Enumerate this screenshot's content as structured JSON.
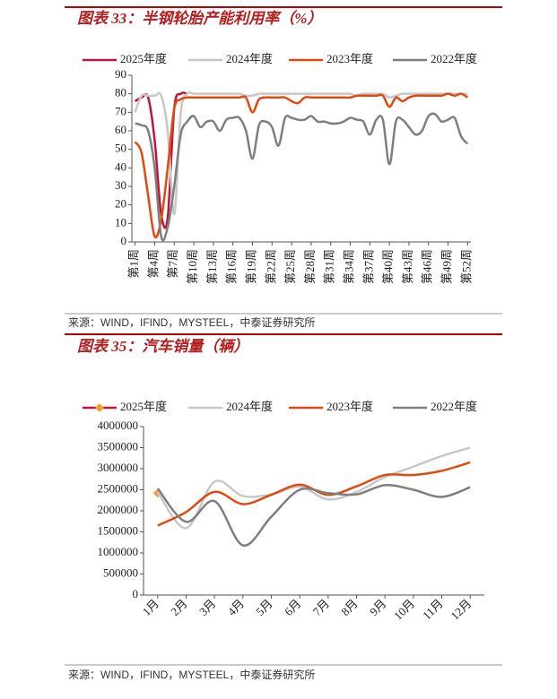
{
  "chart_data": [
    {
      "type": "line",
      "title": "图表 33：半钢轮胎产能利用率（%）",
      "source": "来源：WIND，IFIND，MYSTEEL，中泰证券研究所",
      "categories": [
        "第1周",
        null,
        null,
        "第4周",
        null,
        null,
        "第7周",
        null,
        null,
        "第10周",
        null,
        null,
        "第13周",
        null,
        null,
        "第16周",
        null,
        null,
        "第19周",
        null,
        null,
        "第22周",
        null,
        null,
        "第25周",
        null,
        null,
        "第28周",
        null,
        null,
        "第31周",
        null,
        null,
        "第34周",
        null,
        null,
        "第37周",
        null,
        null,
        "第40周",
        null,
        null,
        "第43周",
        null,
        null,
        "第46周",
        null,
        null,
        "第49周",
        null,
        null,
        "第52周"
      ],
      "series": [
        {
          "name": "2025年度",
          "color": "#c0143c",
          "values": [
            76,
            78,
            78,
            55,
            15,
            13,
            72,
            80,
            80,
            null,
            null,
            null,
            null,
            null,
            null,
            null,
            null,
            null,
            null,
            null,
            null,
            null,
            null,
            null,
            null,
            null,
            null,
            null,
            null,
            null,
            null,
            null,
            null,
            null,
            null,
            null,
            null,
            null,
            null,
            null,
            null,
            null,
            null,
            null,
            null,
            null,
            null,
            null,
            null,
            null,
            null,
            null
          ]
        },
        {
          "name": "2024年度",
          "color": "#c8c8c8",
          "values": [
            70,
            79,
            79,
            79,
            79,
            60,
            15,
            70,
            80,
            80,
            80,
            80,
            80,
            80,
            80,
            80,
            80,
            79,
            79,
            80,
            80,
            80,
            80,
            80,
            80,
            80,
            80,
            80,
            80,
            80,
            80,
            80,
            80,
            80,
            79,
            80,
            80,
            80,
            80,
            78,
            79,
            80,
            80,
            80,
            80,
            80,
            80,
            80,
            80,
            80,
            80,
            80
          ]
        },
        {
          "name": "2023年度",
          "color": "#e04a10",
          "values": [
            54,
            48,
            25,
            3,
            12,
            40,
            72,
            77,
            78,
            78,
            78,
            78,
            78,
            78,
            78,
            78,
            78,
            78,
            70,
            77,
            78,
            78,
            78,
            78,
            76,
            75,
            78,
            78,
            78,
            78,
            78,
            78,
            78,
            78,
            79,
            79,
            79,
            79,
            79,
            73,
            78,
            76,
            78,
            79,
            79,
            79,
            79,
            79,
            80,
            79,
            80,
            78
          ]
        },
        {
          "name": "2022年度",
          "color": "#7f7f7f",
          "values": [
            64,
            63,
            60,
            40,
            3,
            8,
            30,
            58,
            65,
            68,
            62,
            65,
            65,
            60,
            66,
            67,
            67,
            60,
            45,
            63,
            65,
            62,
            52,
            67,
            67,
            66,
            66,
            68,
            65,
            65,
            64,
            64,
            65,
            67,
            66,
            65,
            58,
            66,
            66,
            42,
            65,
            66,
            62,
            58,
            60,
            68,
            69,
            65,
            66,
            67,
            57,
            53
          ]
        }
      ],
      "ylim": [
        0,
        90
      ],
      "yticks": [
        0,
        10,
        20,
        30,
        40,
        50,
        60,
        70,
        80,
        90
      ],
      "grid": false
    },
    {
      "type": "line",
      "title": "图表 35：汽车销量（辆）",
      "source": "来源：WIND，IFIND，MYSTEEL，中泰证券研究所",
      "categories": [
        "1月",
        "2月",
        "3月",
        "4月",
        "5月",
        "6月",
        "7月",
        "8月",
        "9月",
        "10月",
        "11月",
        "12月"
      ],
      "series": [
        {
          "name": "2025年度",
          "color": "#c0143c",
          "marker": "diamond",
          "marker_color": "#f0a030",
          "values": [
            2420000,
            null,
            null,
            null,
            null,
            null,
            null,
            null,
            null,
            null,
            null,
            null
          ]
        },
        {
          "name": "2024年度",
          "color": "#c8c8c8",
          "values": [
            2440000,
            1590000,
            2690000,
            2350000,
            2390000,
            2570000,
            2270000,
            2450000,
            2800000,
            3050000,
            3300000,
            3500000
          ]
        },
        {
          "name": "2023年度",
          "color": "#e04a10",
          "values": [
            1650000,
            1970000,
            2450000,
            2160000,
            2380000,
            2620000,
            2380000,
            2580000,
            2850000,
            2850000,
            2950000,
            3150000
          ]
        },
        {
          "name": "2022年度",
          "color": "#7f7f7f",
          "values": [
            2530000,
            1740000,
            2230000,
            1180000,
            1860000,
            2500000,
            2420000,
            2390000,
            2610000,
            2500000,
            2330000,
            2560000
          ]
        }
      ],
      "ylim": [
        0,
        4000000
      ],
      "yticks": [
        0,
        500000,
        1000000,
        1500000,
        2000000,
        2500000,
        3000000,
        3500000,
        4000000
      ],
      "grid": false
    }
  ]
}
